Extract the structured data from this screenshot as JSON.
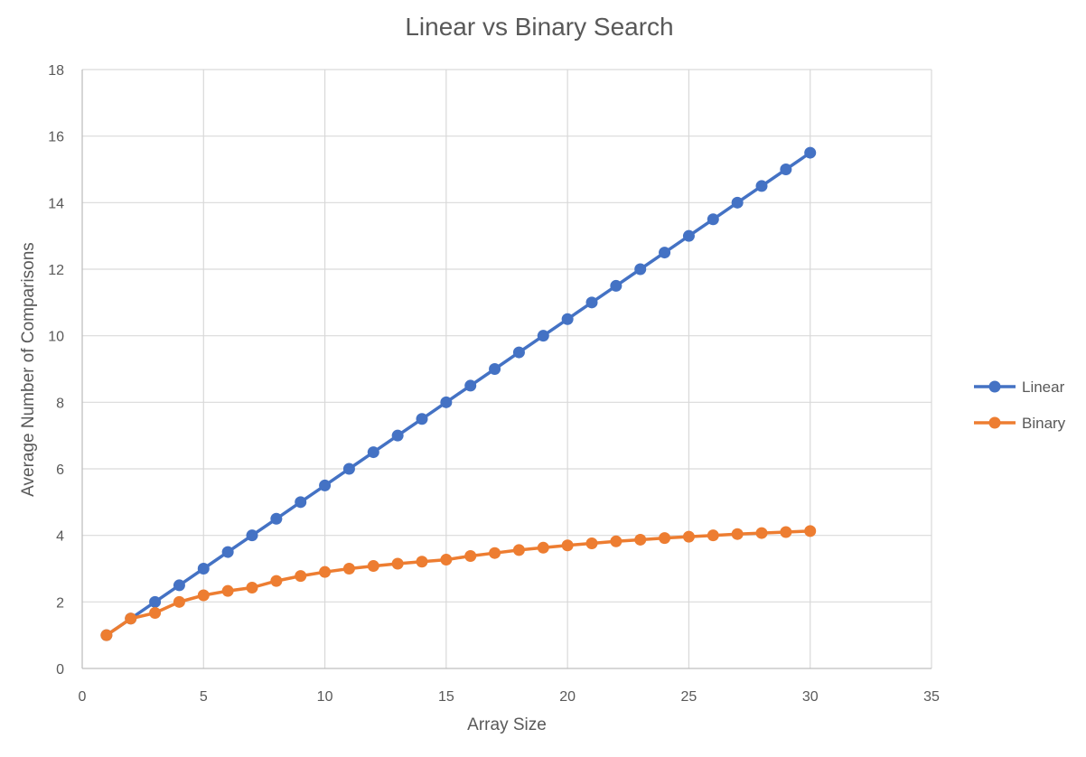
{
  "chart_data": {
    "type": "line",
    "title": "Linear vs Binary Search",
    "xlabel": "Array Size",
    "ylabel": "Average Number of Comparisons",
    "xlim": [
      0,
      35
    ],
    "ylim": [
      0,
      18
    ],
    "x_ticks": [
      0,
      5,
      10,
      15,
      20,
      25,
      30,
      35
    ],
    "y_ticks": [
      0,
      2,
      4,
      6,
      8,
      10,
      12,
      14,
      16,
      18
    ],
    "grid": true,
    "legend_position": "right",
    "x": [
      1,
      2,
      3,
      4,
      5,
      6,
      7,
      8,
      9,
      10,
      11,
      12,
      13,
      14,
      15,
      16,
      17,
      18,
      19,
      20,
      21,
      22,
      23,
      24,
      25,
      26,
      27,
      28,
      29,
      30
    ],
    "series": [
      {
        "name": "Linear",
        "color": "#4472C4",
        "values": [
          1,
          1.5,
          2,
          2.5,
          3,
          3.5,
          4,
          4.5,
          5,
          5.5,
          6,
          6.5,
          7,
          7.5,
          8,
          8.5,
          9,
          9.5,
          10,
          10.5,
          11,
          11.5,
          12,
          12.5,
          13,
          13.5,
          14,
          14.5,
          15,
          15.5
        ]
      },
      {
        "name": "Binary",
        "color": "#ED7D31",
        "values": [
          1,
          1.5,
          1.67,
          2,
          2.2,
          2.33,
          2.43,
          2.63,
          2.78,
          2.9,
          3,
          3.08,
          3.15,
          3.21,
          3.27,
          3.38,
          3.47,
          3.56,
          3.63,
          3.7,
          3.76,
          3.82,
          3.87,
          3.92,
          3.96,
          4,
          4.04,
          4.07,
          4.1,
          4.13
        ]
      }
    ]
  }
}
